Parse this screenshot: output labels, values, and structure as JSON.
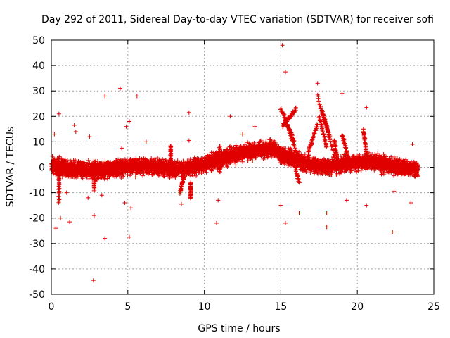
{
  "chart_data": {
    "type": "scatter",
    "title": "Day 292 of 2011, Sidereal Day-to-day VTEC variation (SDTVAR) for receiver sofi",
    "xlabel": "GPS time / hours",
    "ylabel": "SDTVAR / TECUs",
    "xlim": [
      0,
      25
    ],
    "ylim": [
      -50,
      50
    ],
    "xticks": [
      0,
      5,
      10,
      15,
      20,
      25
    ],
    "yticks": [
      -50,
      -40,
      -30,
      -20,
      -10,
      0,
      10,
      20,
      30,
      40,
      50
    ],
    "xtick_labels": [
      "0",
      "5",
      "10",
      "15",
      "20",
      "25"
    ],
    "ytick_labels": [
      "-50",
      "-40",
      "-30",
      "-20",
      "-10",
      "0",
      "10",
      "20",
      "30",
      "40",
      "50"
    ],
    "grid": true,
    "marker": "+",
    "series": [
      {
        "name": "SDTVAR",
        "color": "#e00000",
        "trend": [
          {
            "x": 0.0,
            "y": 0.5
          },
          {
            "x": 1.0,
            "y": -0.5
          },
          {
            "x": 2.0,
            "y": -1.0
          },
          {
            "x": 3.0,
            "y": -1.5
          },
          {
            "x": 4.0,
            "y": -0.5
          },
          {
            "x": 5.0,
            "y": 0.0
          },
          {
            "x": 6.0,
            "y": 0.5
          },
          {
            "x": 7.0,
            "y": 0.0
          },
          {
            "x": 8.0,
            "y": -1.0
          },
          {
            "x": 9.0,
            "y": 0.0
          },
          {
            "x": 10.0,
            "y": 1.0
          },
          {
            "x": 11.0,
            "y": 3.0
          },
          {
            "x": 12.0,
            "y": 5.0
          },
          {
            "x": 13.0,
            "y": 6.0
          },
          {
            "x": 14.0,
            "y": 7.0
          },
          {
            "x": 14.5,
            "y": 8.0
          },
          {
            "x": 15.0,
            "y": 5.0
          },
          {
            "x": 16.0,
            "y": 3.0
          },
          {
            "x": 17.0,
            "y": 1.0
          },
          {
            "x": 18.0,
            "y": 0.0
          },
          {
            "x": 19.0,
            "y": 1.0
          },
          {
            "x": 20.0,
            "y": 2.0
          },
          {
            "x": 21.0,
            "y": 2.0
          },
          {
            "x": 22.0,
            "y": 1.0
          },
          {
            "x": 23.0,
            "y": 0.0
          },
          {
            "x": 24.0,
            "y": -1.0
          }
        ],
        "spread": 2.5,
        "streaks": [
          {
            "x0": 15.0,
            "y0": 23,
            "x1": 15.9,
            "y1": 10
          },
          {
            "x0": 15.2,
            "y0": 21,
            "x1": 16.0,
            "y1": 6
          },
          {
            "x0": 15.1,
            "y0": 16,
            "x1": 16.0,
            "y1": 23
          },
          {
            "x0": 15.6,
            "y0": 8,
            "x1": 16.2,
            "y1": -6
          },
          {
            "x0": 16.8,
            "y0": 6,
            "x1": 17.4,
            "y1": 17
          },
          {
            "x0": 17.4,
            "y0": 28,
            "x1": 18.5,
            "y1": 5
          },
          {
            "x0": 17.5,
            "y0": 20,
            "x1": 18.0,
            "y1": 8
          },
          {
            "x0": 17.7,
            "y0": 22,
            "x1": 18.2,
            "y1": 12
          },
          {
            "x0": 18.5,
            "y0": 11,
            "x1": 18.7,
            "y1": 2
          },
          {
            "x0": 19.0,
            "y0": 13,
            "x1": 19.4,
            "y1": 4
          },
          {
            "x0": 20.4,
            "y0": 15,
            "x1": 20.6,
            "y1": 5
          },
          {
            "x0": 8.4,
            "y0": -10,
            "x1": 8.7,
            "y1": -3
          },
          {
            "x0": 0.5,
            "y0": -14,
            "x1": 0.5,
            "y1": 4
          },
          {
            "x0": 2.8,
            "y0": -9,
            "x1": 2.8,
            "y1": 2
          },
          {
            "x0": 11.0,
            "y0": -2,
            "x1": 11.0,
            "y1": 8
          },
          {
            "x0": 7.8,
            "y0": 9,
            "x1": 7.8,
            "y1": -2
          },
          {
            "x0": 9.1,
            "y0": -12,
            "x1": 9.1,
            "y1": -6
          }
        ],
        "outliers": [
          {
            "x": 2.75,
            "y": -44.5
          },
          {
            "x": 15.1,
            "y": 48.0
          },
          {
            "x": 15.3,
            "y": 37.5
          },
          {
            "x": 4.5,
            "y": 31.0
          },
          {
            "x": 3.5,
            "y": 28.0
          },
          {
            "x": 5.6,
            "y": 28.0
          },
          {
            "x": 19.0,
            "y": 29.0
          },
          {
            "x": 17.4,
            "y": 33.0
          },
          {
            "x": 20.6,
            "y": 23.5
          },
          {
            "x": 0.5,
            "y": 21.0
          },
          {
            "x": 9.0,
            "y": 21.5
          },
          {
            "x": 11.7,
            "y": 20.0
          },
          {
            "x": 3.5,
            "y": -28.0
          },
          {
            "x": 5.1,
            "y": -27.5
          },
          {
            "x": 22.3,
            "y": -25.5
          },
          {
            "x": 0.3,
            "y": -24.0
          },
          {
            "x": 15.3,
            "y": -22.0
          },
          {
            "x": 10.8,
            "y": -22.0
          },
          {
            "x": 18.0,
            "y": -23.5
          },
          {
            "x": 2.8,
            "y": -19.0
          },
          {
            "x": 0.6,
            "y": -20.0
          },
          {
            "x": 15.0,
            "y": -15.0
          },
          {
            "x": 20.6,
            "y": -15.0
          },
          {
            "x": 23.5,
            "y": -14.0
          },
          {
            "x": 8.5,
            "y": -14.5
          },
          {
            "x": 4.8,
            "y": -14.0
          },
          {
            "x": 5.2,
            "y": -16.0
          },
          {
            "x": 16.2,
            "y": -18.0
          },
          {
            "x": 18.0,
            "y": -18.0
          },
          {
            "x": 1.5,
            "y": 16.5
          },
          {
            "x": 5.1,
            "y": 18.0
          },
          {
            "x": 13.3,
            "y": 16.0
          },
          {
            "x": 6.2,
            "y": 10.0
          },
          {
            "x": 1.6,
            "y": 14.0
          },
          {
            "x": 2.5,
            "y": 12.0
          },
          {
            "x": 0.2,
            "y": 13.0
          },
          {
            "x": 9.0,
            "y": 10.5
          },
          {
            "x": 4.9,
            "y": 16.0
          },
          {
            "x": 3.3,
            "y": -11.0
          },
          {
            "x": 1.2,
            "y": -21.5
          },
          {
            "x": 23.6,
            "y": 9.0
          },
          {
            "x": 12.5,
            "y": 13.0
          },
          {
            "x": 10.9,
            "y": -13.0
          },
          {
            "x": 22.4,
            "y": -9.5
          },
          {
            "x": 19.3,
            "y": -13.0
          },
          {
            "x": 1.0,
            "y": -10.0
          },
          {
            "x": 2.4,
            "y": -12.0
          },
          {
            "x": 4.6,
            "y": 7.5
          }
        ]
      }
    ]
  }
}
